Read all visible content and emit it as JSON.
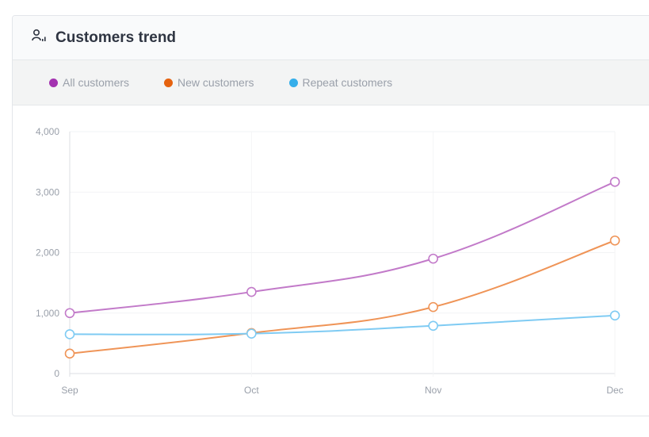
{
  "header": {
    "title": "Customers trend",
    "icon": "customers-chart-icon"
  },
  "chart_data": {
    "type": "line",
    "title": "Customers trend",
    "categories": [
      "Sep",
      "Oct",
      "Nov",
      "Dec"
    ],
    "ylim": [
      0,
      4000
    ],
    "yticks": [
      0,
      1000,
      2000,
      3000,
      4000
    ],
    "ytick_labels": [
      "0",
      "1,000",
      "2,000",
      "3,000",
      "4,000"
    ],
    "grid": true,
    "legend_position": "top-left",
    "series": [
      {
        "name": "All customers",
        "color": "#a332b0",
        "line_color": "#c27ac9",
        "values": [
          1000,
          1350,
          1900,
          3170
        ]
      },
      {
        "name": "New customers",
        "color": "#e5620f",
        "line_color": "#ef9457",
        "values": [
          330,
          670,
          1100,
          2200
        ]
      },
      {
        "name": "Repeat customers",
        "color": "#35aeea",
        "line_color": "#7fcbf3",
        "values": [
          650,
          660,
          790,
          960
        ]
      }
    ]
  }
}
